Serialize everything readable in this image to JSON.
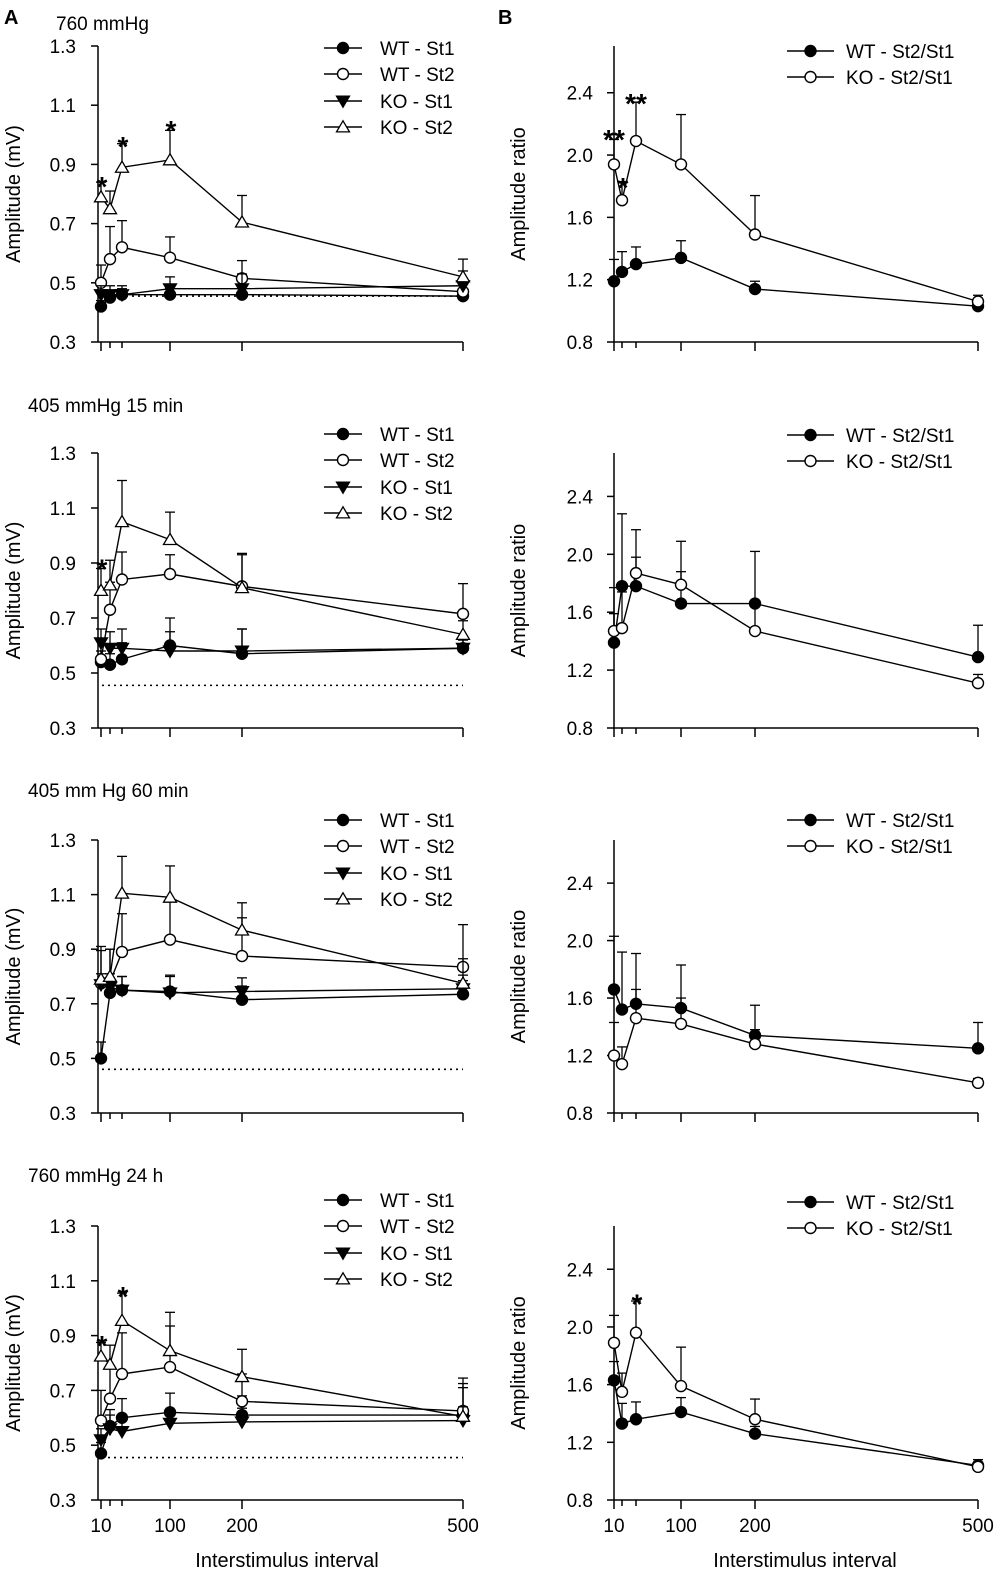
{
  "colors": {
    "ink": "#000000",
    "paper": "#ffffff"
  },
  "panel_letters": [
    "A",
    "B"
  ],
  "xlabel": "Interstimulus interval",
  "chart_data": [
    {
      "type": "line",
      "column": "A",
      "row": 0,
      "title": "760 mmHg",
      "ylabel": "Amplitude (mV)",
      "x": [
        10,
        20,
        50,
        100,
        200,
        500
      ],
      "xticks": [
        10,
        100,
        200,
        500
      ],
      "ylim": [
        0.3,
        1.3
      ],
      "yticks": [
        "0.3",
        "0.5",
        "0.7",
        "0.9",
        "1.1",
        "1.3"
      ],
      "baseline": 0.455,
      "series": [
        {
          "name": "WT - St1",
          "marker": "circle-filled",
          "values": [
            0.42,
            0.45,
            0.46,
            0.46,
            0.46,
            0.455
          ],
          "errors": [
            0.02,
            0.02,
            0.02,
            0.02,
            0.02,
            0.02
          ]
        },
        {
          "name": "WT - St2",
          "marker": "circle-open",
          "values": [
            0.5,
            0.58,
            0.62,
            0.585,
            0.515,
            0.47
          ],
          "errors": [
            0.06,
            0.11,
            0.09,
            0.07,
            0.06,
            0.04
          ]
        },
        {
          "name": "KO - St1",
          "marker": "triangle-filled",
          "values": [
            0.46,
            0.46,
            0.46,
            0.48,
            0.48,
            0.49
          ],
          "errors": [
            0.03,
            0.03,
            0.03,
            0.04,
            0.05,
            0.05
          ]
        },
        {
          "name": "KO - St2",
          "marker": "triangle-open",
          "values": [
            0.79,
            0.75,
            0.89,
            0.915,
            0.705,
            0.52
          ],
          "errors": [
            0.05,
            0.06,
            0.08,
            0.1,
            0.09,
            0.06
          ]
        }
      ],
      "annotations": [
        {
          "text": "*",
          "x": 10,
          "y": 0.84
        },
        {
          "text": "*",
          "x": 50,
          "y": 0.975
        },
        {
          "text": "*",
          "x": 100,
          "y": 1.03
        }
      ]
    },
    {
      "type": "line",
      "column": "B",
      "row": 0,
      "title": "",
      "ylabel": "Amplitude ratio",
      "x": [
        10,
        20,
        50,
        100,
        200,
        500
      ],
      "xticks": [
        10,
        100,
        200,
        500
      ],
      "ylim": [
        0.8,
        2.7
      ],
      "yticks": [
        "0.8",
        "1.2",
        "1.6",
        "2.0",
        "2.4"
      ],
      "series": [
        {
          "name": "WT - St2/St1",
          "marker": "circle-filled",
          "values": [
            1.19,
            1.25,
            1.3,
            1.34,
            1.14,
            1.03
          ],
          "errors": [
            0.14,
            0.13,
            0.11,
            0.11,
            0.05,
            0.03
          ]
        },
        {
          "name": "KO - St2/St1",
          "marker": "circle-open",
          "values": [
            1.94,
            1.71,
            2.09,
            1.94,
            1.49,
            1.06
          ],
          "errors": [
            0.16,
            0.12,
            0.25,
            0.32,
            0.25,
            0.04
          ]
        }
      ],
      "annotations": [
        {
          "text": "**",
          "x": 10,
          "y": 2.13
        },
        {
          "text": "*",
          "x": 20,
          "y": 1.82
        },
        {
          "text": "**",
          "x": 50,
          "y": 2.36
        }
      ]
    },
    {
      "type": "line",
      "column": "A",
      "row": 1,
      "title": "405 mmHg  15 min",
      "ylabel": "Amplitude (mV)",
      "x": [
        10,
        20,
        50,
        100,
        200,
        500
      ],
      "xticks": [
        10,
        100,
        200,
        500
      ],
      "ylim": [
        0.3,
        1.3
      ],
      "yticks": [
        "0.3",
        "0.5",
        "0.7",
        "0.9",
        "1.1",
        "1.3"
      ],
      "baseline": 0.455,
      "series": [
        {
          "name": "WT - St1",
          "marker": "circle-filled",
          "values": [
            0.54,
            0.53,
            0.55,
            0.6,
            0.57,
            0.59
          ],
          "errors": [
            0.04,
            0.04,
            0.06,
            0.1,
            0.09,
            0.03
          ]
        },
        {
          "name": "WT - St2",
          "marker": "circle-open",
          "values": [
            0.55,
            0.73,
            0.84,
            0.86,
            0.815,
            0.715
          ],
          "errors": [
            0.07,
            0.1,
            0.1,
            0.07,
            0.12,
            0.11
          ]
        },
        {
          "name": "KO - St1",
          "marker": "triangle-filled",
          "values": [
            0.61,
            0.59,
            0.59,
            0.58,
            0.58,
            0.59
          ],
          "errors": [
            0.05,
            0.06,
            0.07,
            0.07,
            0.08,
            0.03
          ]
        },
        {
          "name": "KO - St2",
          "marker": "triangle-open",
          "values": [
            0.8,
            0.82,
            1.05,
            0.985,
            0.81,
            0.64
          ],
          "errors": [
            0.08,
            0.09,
            0.15,
            0.1,
            0.12,
            0.05
          ]
        }
      ],
      "annotations": [
        {
          "text": "*",
          "x": 10,
          "y": 0.895
        }
      ]
    },
    {
      "type": "line",
      "column": "B",
      "row": 1,
      "title": "",
      "ylabel": "Amplitude ratio",
      "x": [
        10,
        20,
        50,
        100,
        200,
        500
      ],
      "xticks": [
        10,
        100,
        200,
        500
      ],
      "ylim": [
        0.8,
        2.7
      ],
      "yticks": [
        "0.8",
        "1.2",
        "1.6",
        "2.0",
        "2.4"
      ],
      "series": [
        {
          "name": "WT - St2/St1",
          "marker": "circle-filled",
          "values": [
            1.39,
            1.78,
            1.78,
            1.66,
            1.66,
            1.29
          ],
          "errors": [
            0.2,
            0.5,
            0.2,
            0.22,
            0.36,
            0.22
          ]
        },
        {
          "name": "KO - St2/St1",
          "marker": "circle-open",
          "values": [
            1.47,
            1.49,
            1.87,
            1.79,
            1.47,
            1.11
          ],
          "errors": [
            0.3,
            0.25,
            0.3,
            0.3,
            0.2,
            0.06
          ]
        }
      ],
      "annotations": []
    },
    {
      "type": "line",
      "column": "A",
      "row": 2,
      "title": "405 mm Hg  60 min",
      "ylabel": "Amplitude (mV)",
      "x": [
        10,
        20,
        50,
        100,
        200,
        500
      ],
      "xticks": [
        10,
        100,
        200,
        500
      ],
      "ylim": [
        0.3,
        1.3
      ],
      "yticks": [
        "0.3",
        "0.5",
        "0.7",
        "0.9",
        "1.1",
        "1.3"
      ],
      "baseline": 0.46,
      "series": [
        {
          "name": "WT - St1",
          "marker": "circle-filled",
          "values": [
            0.5,
            0.74,
            0.75,
            0.745,
            0.715,
            0.735
          ],
          "errors": [
            0.06,
            0.05,
            0.05,
            0.06,
            0.05,
            0.05
          ]
        },
        {
          "name": "WT - St2",
          "marker": "circle-open",
          "values": [
            0.775,
            0.78,
            0.89,
            0.935,
            0.875,
            0.835
          ],
          "errors": [
            0.12,
            0.12,
            0.14,
            0.14,
            0.14,
            0.155
          ]
        },
        {
          "name": "KO - St1",
          "marker": "triangle-filled",
          "values": [
            0.77,
            0.76,
            0.75,
            0.74,
            0.745,
            0.755
          ],
          "errors": [
            0.04,
            0.05,
            0.05,
            0.06,
            0.05,
            0.05
          ]
        },
        {
          "name": "KO - St2",
          "marker": "triangle-open",
          "values": [
            0.79,
            0.8,
            1.105,
            1.09,
            0.97,
            0.775
          ],
          "errors": [
            0.12,
            0.1,
            0.135,
            0.115,
            0.1,
            0.09
          ]
        }
      ],
      "annotations": []
    },
    {
      "type": "line",
      "column": "B",
      "row": 2,
      "title": "",
      "ylabel": "Amplitude ratio",
      "x": [
        10,
        20,
        50,
        100,
        200,
        500
      ],
      "xticks": [
        10,
        100,
        200,
        500
      ],
      "ylim": [
        0.8,
        2.7
      ],
      "yticks": [
        "0.8",
        "1.2",
        "1.6",
        "2.0",
        "2.4"
      ],
      "series": [
        {
          "name": "WT - St2/St1",
          "marker": "circle-filled",
          "values": [
            1.66,
            1.52,
            1.56,
            1.53,
            1.34,
            1.25
          ],
          "errors": [
            0.37,
            0.4,
            0.35,
            0.3,
            0.21,
            0.18
          ]
        },
        {
          "name": "KO - St2/St1",
          "marker": "circle-open",
          "values": [
            1.2,
            1.14,
            1.46,
            1.42,
            1.28,
            1.01
          ],
          "errors": [
            0.23,
            0.12,
            0.2,
            0.18,
            0.1,
            0.03
          ]
        }
      ],
      "annotations": []
    },
    {
      "type": "line",
      "column": "A",
      "row": 3,
      "title": "760 mmHg  24 h",
      "ylabel": "Amplitude (mV)",
      "x": [
        10,
        20,
        50,
        100,
        200,
        500
      ],
      "xticks": [
        10,
        100,
        200,
        500
      ],
      "xticklabels": [
        "10",
        "100",
        "200",
        "500"
      ],
      "ylim": [
        0.3,
        1.3
      ],
      "yticks": [
        "0.3",
        "0.5",
        "0.7",
        "0.9",
        "1.1",
        "1.3"
      ],
      "baseline": 0.455,
      "series": [
        {
          "name": "WT - St1",
          "marker": "circle-filled",
          "values": [
            0.47,
            0.57,
            0.6,
            0.62,
            0.61,
            0.61
          ],
          "errors": [
            0.04,
            0.06,
            0.07,
            0.07,
            0.07,
            0.1
          ]
        },
        {
          "name": "WT - St2",
          "marker": "circle-open",
          "values": [
            0.59,
            0.67,
            0.76,
            0.785,
            0.66,
            0.625
          ],
          "errors": [
            0.11,
            0.12,
            0.15,
            0.15,
            0.1,
            0.12
          ]
        },
        {
          "name": "KO - St1",
          "marker": "triangle-filled",
          "values": [
            0.52,
            0.56,
            0.55,
            0.58,
            0.585,
            0.59
          ],
          "errors": [
            0.04,
            0.05,
            0.05,
            0.05,
            0.05,
            0.05
          ]
        },
        {
          "name": "KO - St2",
          "marker": "triangle-open",
          "values": [
            0.825,
            0.795,
            0.955,
            0.845,
            0.75,
            0.605
          ],
          "errors": [
            0.05,
            0.07,
            0.1,
            0.14,
            0.1,
            0.12
          ]
        }
      ],
      "annotations": [
        {
          "text": "*",
          "x": 10,
          "y": 0.88
        },
        {
          "text": "*",
          "x": 50,
          "y": 1.06
        }
      ]
    },
    {
      "type": "line",
      "column": "B",
      "row": 3,
      "title": "",
      "ylabel": "Amplitude ratio",
      "x": [
        10,
        20,
        50,
        100,
        200,
        500
      ],
      "xticks": [
        10,
        100,
        200,
        500
      ],
      "xticklabels": [
        "10",
        "100",
        "200",
        "500"
      ],
      "ylim": [
        0.8,
        2.7
      ],
      "yticks": [
        "0.8",
        "1.2",
        "1.6",
        "2.0",
        "2.4"
      ],
      "series": [
        {
          "name": "WT - St2/St1",
          "marker": "circle-filled",
          "values": [
            1.63,
            1.33,
            1.36,
            1.41,
            1.26,
            1.04
          ],
          "errors": [
            0.13,
            0.14,
            0.12,
            0.1,
            0.05,
            0.04
          ]
        },
        {
          "name": "KO - St2/St1",
          "marker": "circle-open",
          "values": [
            1.89,
            1.55,
            1.96,
            1.59,
            1.36,
            1.03
          ],
          "errors": [
            0.19,
            0.13,
            0.22,
            0.27,
            0.14,
            0.03
          ]
        }
      ],
      "annotations": [
        {
          "text": "*",
          "x": 50,
          "y": 2.19
        }
      ]
    }
  ]
}
